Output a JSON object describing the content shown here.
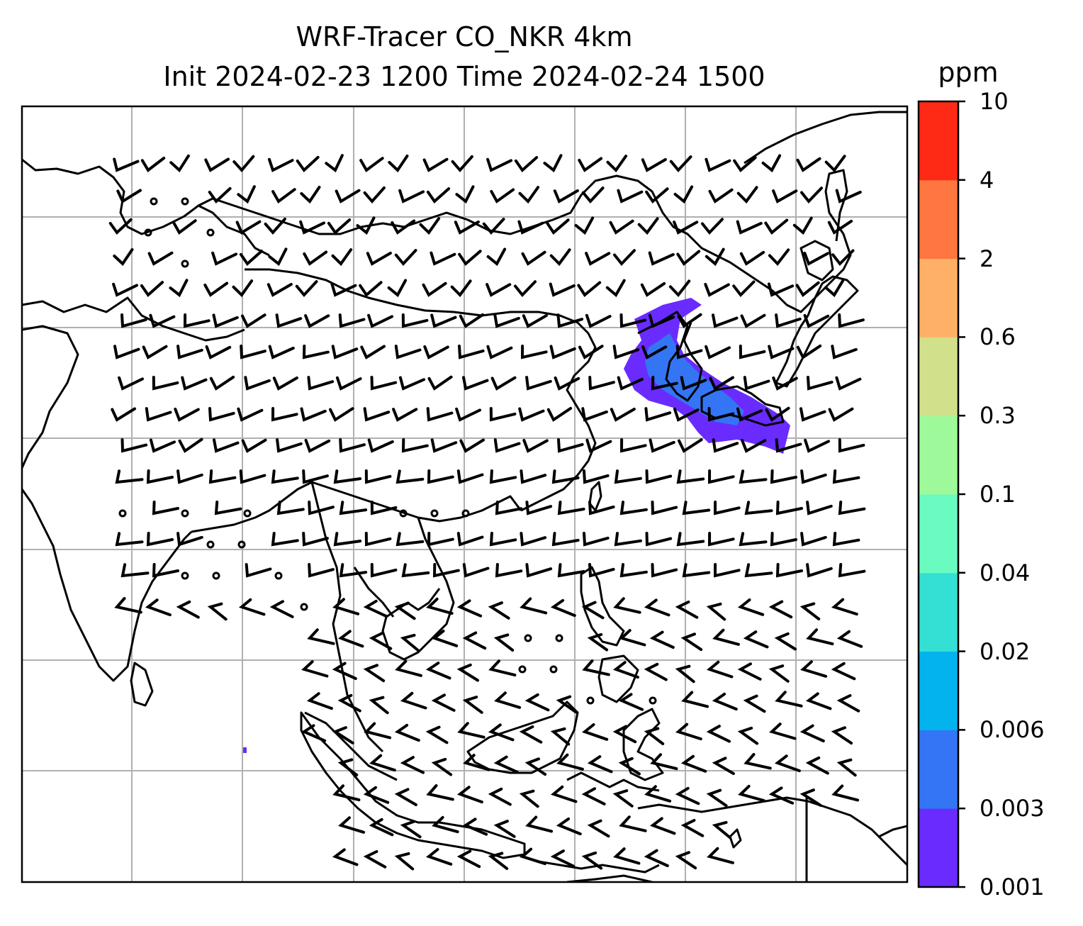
{
  "title": {
    "line1": "WRF-Tracer CO_NKR 4km",
    "line2": "Init 2024-02-23 1200 Time 2024-02-24 1500"
  },
  "colorbar": {
    "unit": "ppm",
    "levels": [
      "0.001",
      "0.003",
      "0.006",
      "0.02",
      "0.04",
      "0.1",
      "0.3",
      "0.6",
      "2",
      "4",
      "10"
    ],
    "colors": [
      "#6a2bff",
      "#3375f5",
      "#03b3ee",
      "#33e0d3",
      "#69fbc0",
      "#9ef99a",
      "#d1e08a",
      "#ffb067",
      "#ff7640",
      "#ff2a16"
    ]
  },
  "map": {
    "background": "#ffffff",
    "coastline_color": "#000000",
    "grid_color": "#b0b0b0",
    "plume_colors": [
      "#6a2bff",
      "#3375f5"
    ],
    "calm_marker": "circle",
    "barb_color": "#000000"
  }
}
